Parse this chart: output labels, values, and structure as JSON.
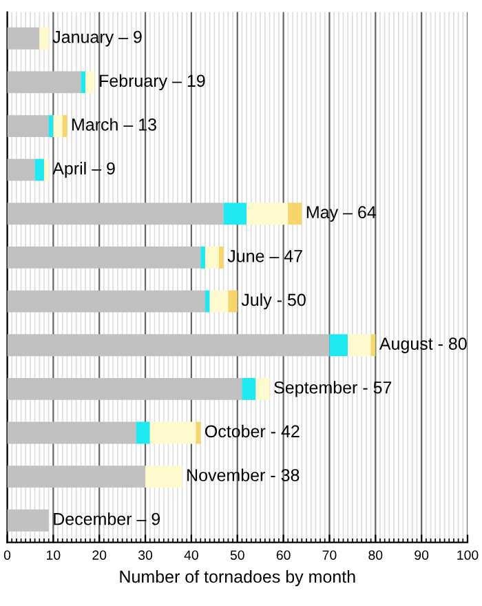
{
  "chart_data": {
    "type": "bar",
    "orientation": "horizontal",
    "stacked": true,
    "categories": [
      null,
      null,
      null,
      null,
      null,
      null,
      null,
      null,
      null,
      null,
      null,
      null
    ],
    "series": [
      {
        "color": "#c0c0c0",
        "values": [
          7,
          16,
          9,
          6,
          47,
          42,
          43,
          70,
          51,
          28,
          30,
          9
        ]
      },
      {
        "color": "#1ee8f0",
        "values": [
          0,
          1,
          1,
          2,
          5,
          1,
          1,
          4,
          3,
          3,
          0,
          0
        ]
      },
      {
        "color": "#fffacd",
        "values": [
          2,
          2,
          2,
          1,
          9,
          3,
          4,
          5,
          3,
          10,
          8,
          0
        ]
      },
      {
        "color": "#f6d56a",
        "values": [
          0,
          0,
          1,
          0,
          3,
          1,
          2,
          1,
          0,
          1,
          0,
          0
        ]
      }
    ],
    "annotations": [
      "January – 9",
      "February – 19",
      "March – 13",
      "April – 9",
      "May – 64",
      "June – 47",
      "July - 50",
      "August - 80",
      "September - 57",
      "October - 42",
      "November - 38",
      "December – 9"
    ],
    "xlabel": "Number of tornadoes by month",
    "xlim": [
      0,
      100
    ],
    "xticks": [
      0,
      10,
      20,
      30,
      40,
      50,
      60,
      70,
      80,
      90,
      100
    ],
    "grid": "x",
    "tick_labels": "x"
  }
}
